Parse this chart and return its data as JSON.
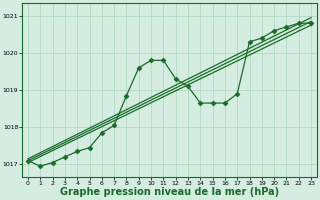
{
  "xlabel": "Graphe pression niveau de la mer (hPa)",
  "xlabel_fontsize": 7,
  "background_color": "#d4ede0",
  "grid_color": "#aed4c0",
  "line_color": "#1a6b2a",
  "xlim": [
    -0.5,
    23.5
  ],
  "ylim": [
    1016.65,
    1021.35
  ],
  "yticks": [
    1017,
    1018,
    1019,
    1020,
    1021
  ],
  "xticks": [
    0,
    1,
    2,
    3,
    4,
    5,
    6,
    7,
    8,
    9,
    10,
    11,
    12,
    13,
    14,
    15,
    16,
    17,
    18,
    19,
    20,
    21,
    22,
    23
  ],
  "trend1_x": [
    0,
    23
  ],
  "trend1_y": [
    1017.05,
    1020.75
  ],
  "trend2_x": [
    0,
    23
  ],
  "trend2_y": [
    1017.1,
    1020.85
  ],
  "trend3_x": [
    0,
    23
  ],
  "trend3_y": [
    1017.15,
    1020.95
  ],
  "jagged_x": [
    0,
    1,
    2,
    3,
    4,
    5,
    6,
    7,
    8,
    9,
    10,
    11,
    12,
    13,
    14,
    15,
    16,
    17,
    18,
    19,
    20,
    21,
    22,
    23
  ],
  "jagged_y": [
    1017.1,
    1016.95,
    1017.05,
    1017.2,
    1017.35,
    1017.45,
    1017.85,
    1018.05,
    1018.85,
    1019.6,
    1019.8,
    1019.8,
    1019.3,
    1019.1,
    1018.65,
    1018.65,
    1018.65,
    1018.9,
    1020.3,
    1020.4,
    1020.6,
    1020.7,
    1020.8,
    1020.8
  ]
}
